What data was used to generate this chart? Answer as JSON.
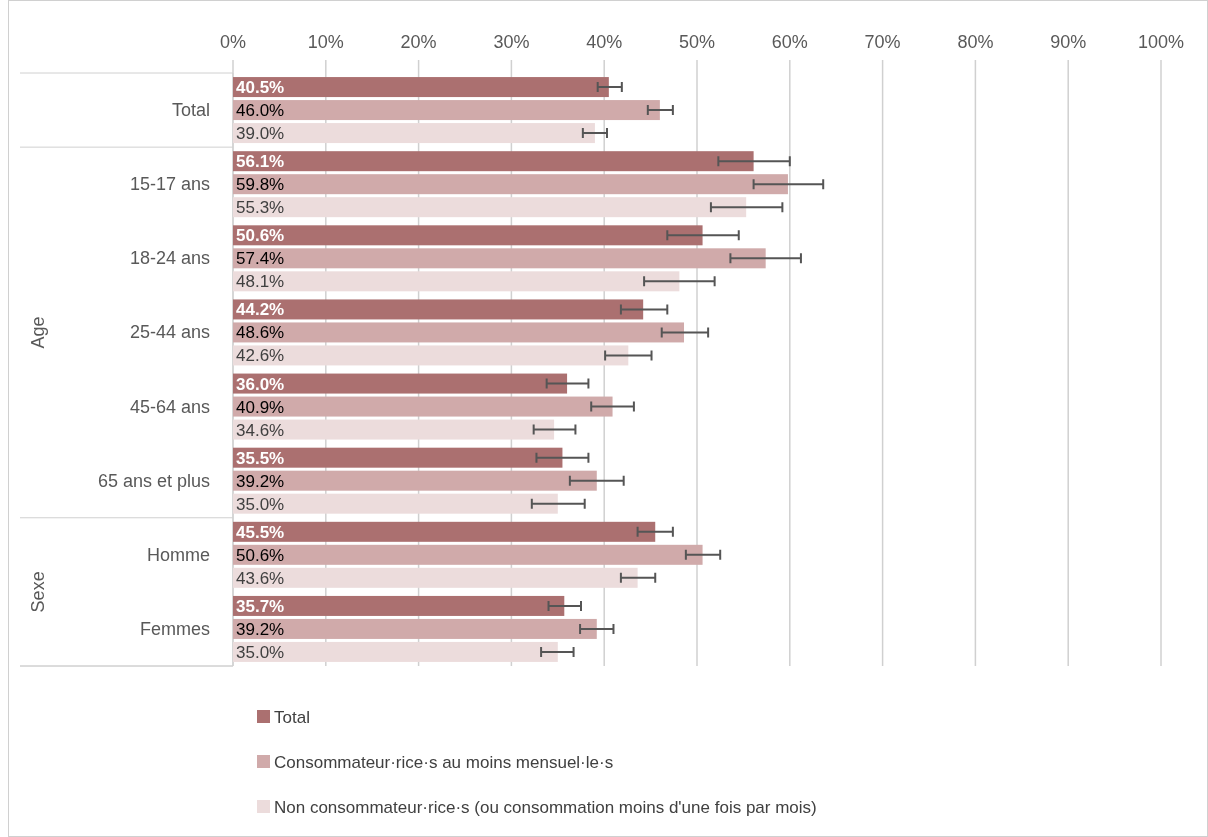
{
  "chart_data": {
    "type": "bar",
    "orientation": "horizontal",
    "categories": [
      "Total",
      "15-17 ans",
      "18-24 ans",
      "25-44 ans",
      "45-64 ans",
      "65 ans et plus",
      "Homme",
      "Femmes"
    ],
    "series": [
      {
        "name": "Total",
        "color": "#ab7070",
        "values": [
          40.5,
          56.1,
          50.6,
          44.2,
          36.0,
          35.5,
          45.5,
          35.7
        ],
        "value_labels": [
          "40.5%",
          "56.1%",
          "50.6%",
          "44.2%",
          "36.0%",
          "35.5%",
          "45.5%",
          "35.7%"
        ],
        "errors": [
          [
            39.3,
            41.9
          ],
          [
            52.3,
            60.0
          ],
          [
            46.8,
            54.5
          ],
          [
            41.8,
            46.8
          ],
          [
            33.8,
            38.3
          ],
          [
            32.7,
            38.3
          ],
          [
            43.6,
            47.4
          ],
          [
            34.0,
            37.5
          ]
        ]
      },
      {
        "name": "Consommateur·rice·s au moins mensuel·le·s",
        "color": "#d0aaaa",
        "values": [
          46.0,
          59.8,
          57.4,
          48.6,
          40.9,
          39.2,
          50.6,
          39.2
        ],
        "value_labels": [
          "46.0%",
          "59.8%",
          "57.4%",
          "48.6%",
          "40.9%",
          "39.2%",
          "50.6%",
          "39.2%"
        ],
        "errors": [
          [
            44.7,
            47.4
          ],
          [
            56.1,
            63.6
          ],
          [
            53.6,
            61.2
          ],
          [
            46.2,
            51.2
          ],
          [
            38.6,
            43.2
          ],
          [
            36.3,
            42.1
          ],
          [
            48.8,
            52.5
          ],
          [
            37.4,
            41.0
          ]
        ]
      },
      {
        "name": "Non consommateur·rice·s (ou consommation moins d'une fois par mois)",
        "color": "#ecdcdc",
        "values": [
          39.0,
          55.3,
          48.1,
          42.6,
          34.6,
          35.0,
          43.6,
          35.0
        ],
        "value_labels": [
          "39.0%",
          "55.3%",
          "48.1%",
          "42.6%",
          "34.6%",
          "35.0%",
          "43.6%",
          "35.0%"
        ],
        "errors": [
          [
            37.7,
            40.3
          ],
          [
            51.5,
            59.2
          ],
          [
            44.3,
            51.9
          ],
          [
            40.1,
            45.1
          ],
          [
            32.4,
            36.9
          ],
          [
            32.2,
            37.9
          ],
          [
            41.8,
            45.5
          ],
          [
            33.2,
            36.7
          ]
        ]
      }
    ],
    "xlim": [
      0,
      100
    ],
    "xticks": [
      {
        "value": 0,
        "label": "0%"
      },
      {
        "value": 10,
        "label": "10%"
      },
      {
        "value": 20,
        "label": "20%"
      },
      {
        "value": 30,
        "label": "30%"
      },
      {
        "value": 40,
        "label": "40%"
      },
      {
        "value": 50,
        "label": "50%"
      },
      {
        "value": 60,
        "label": "60%"
      },
      {
        "value": 70,
        "label": "70%"
      },
      {
        "value": 80,
        "label": "80%"
      },
      {
        "value": 90,
        "label": "90%"
      },
      {
        "value": 100,
        "label": "100%"
      }
    ],
    "grid": "x",
    "legend": "bottom",
    "annotations": [
      "Age",
      "Sexe"
    ]
  }
}
